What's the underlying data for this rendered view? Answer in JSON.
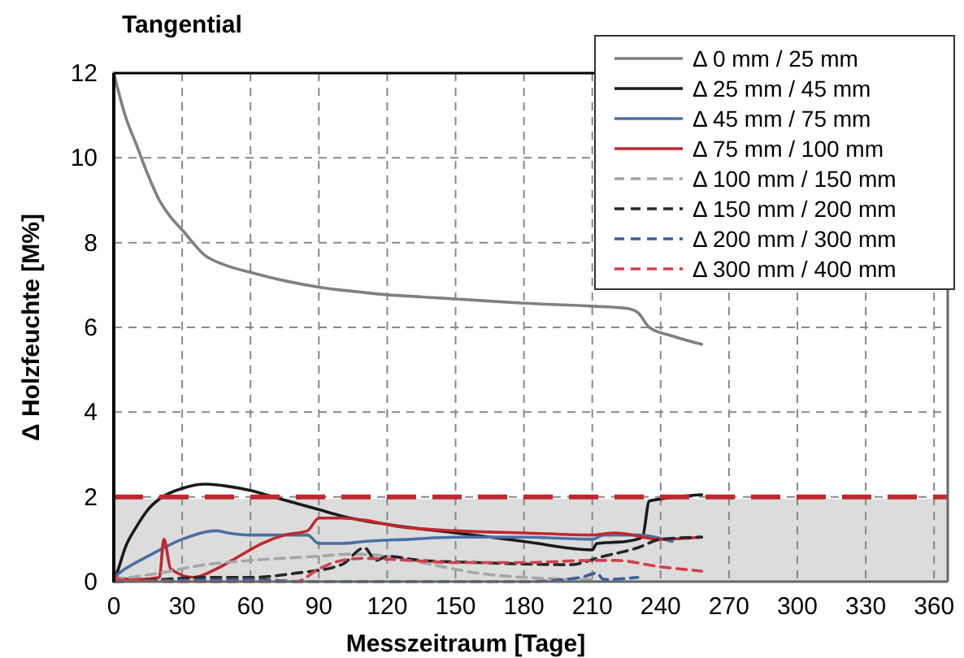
{
  "chart_data": {
    "type": "line",
    "title": "Tangential",
    "xlabel": "Messzeitraum [Tage]",
    "ylabel": "Δ Holzfeuchte [M%]",
    "xlim": [
      0,
      366
    ],
    "ylim": [
      0,
      12
    ],
    "xticks": [
      0,
      30,
      60,
      90,
      120,
      150,
      180,
      210,
      240,
      270,
      300,
      330,
      360
    ],
    "yticks": [
      0,
      2,
      4,
      6,
      8,
      10,
      12
    ],
    "grid": true,
    "legend": "top right",
    "ref_lines": [
      {
        "axis": "y",
        "value": 2,
        "color": "#c0282d",
        "line_style": "dashed"
      }
    ],
    "bands": [
      {
        "axis": "y",
        "from": 0,
        "to": 1.95,
        "color": "#dcdcdc"
      }
    ],
    "series": [
      {
        "name": "Δ 0 mm / 25 mm",
        "color": "#808080",
        "line_style": "solid",
        "x": [
          0,
          5,
          10,
          15,
          20,
          25,
          30,
          40,
          50,
          60,
          75,
          90,
          105,
          120,
          135,
          150,
          180,
          210,
          225,
          230,
          235,
          245,
          258
        ],
        "values": [
          12,
          11,
          10.3,
          9.6,
          9,
          8.6,
          8.3,
          7.7,
          7.45,
          7.3,
          7.1,
          6.95,
          6.85,
          6.77,
          6.72,
          6.67,
          6.57,
          6.5,
          6.45,
          6.35,
          6.0,
          5.8,
          5.6
        ]
      },
      {
        "name": "Δ 25 mm / 45 mm",
        "color": "#1a1a1a",
        "line_style": "solid",
        "x": [
          0,
          2,
          5,
          10,
          15,
          20,
          30,
          40,
          50,
          60,
          70,
          80,
          90,
          100,
          120,
          150,
          180,
          210,
          212,
          225,
          232,
          235,
          240,
          258
        ],
        "values": [
          0,
          0.3,
          0.8,
          1.3,
          1.7,
          1.95,
          2.2,
          2.3,
          2.25,
          2.15,
          2.0,
          1.85,
          1.7,
          1.55,
          1.35,
          1.15,
          0.95,
          0.75,
          0.9,
          0.95,
          1.05,
          1.9,
          1.95,
          2.05
        ]
      },
      {
        "name": "Δ 45 mm / 75 mm",
        "color": "#4a6fa5",
        "line_style": "solid",
        "x": [
          0,
          5,
          15,
          30,
          45,
          50,
          60,
          75,
          85,
          90,
          100,
          110,
          130,
          150,
          180,
          210,
          215,
          230,
          245
        ],
        "values": [
          0.1,
          0.3,
          0.6,
          1.0,
          1.2,
          1.15,
          1.1,
          1.1,
          1.1,
          0.9,
          0.9,
          0.95,
          1.0,
          1.05,
          1.05,
          1.0,
          1.1,
          1.1,
          0.95
        ]
      },
      {
        "name": "Δ 75 mm / 100 mm",
        "color": "#c0282d",
        "line_style": "solid",
        "x": [
          0,
          10,
          20,
          22,
          25,
          35,
          45,
          55,
          65,
          75,
          85,
          90,
          100,
          110,
          125,
          150,
          180,
          210,
          220,
          240,
          258
        ],
        "values": [
          0.1,
          0.05,
          0.1,
          1.0,
          0.3,
          0.1,
          0.3,
          0.6,
          0.9,
          1.1,
          1.2,
          1.5,
          1.5,
          1.45,
          1.3,
          1.2,
          1.15,
          1.1,
          1.15,
          1.0,
          1.05
        ]
      },
      {
        "name": "Δ 100 mm / 150 mm",
        "color": "#a6a6a6",
        "line_style": "dashed",
        "x": [
          0,
          20,
          40,
          60,
          90,
          105,
          120,
          135,
          160,
          180,
          210
        ],
        "values": [
          0.05,
          0.2,
          0.4,
          0.5,
          0.6,
          0.65,
          0.6,
          0.45,
          0.2,
          0.1,
          0.05
        ]
      },
      {
        "name": "Δ 150 mm / 200 mm",
        "color": "#262626",
        "line_style": "dashed",
        "x": [
          0,
          20,
          40,
          60,
          80,
          100,
          110,
          115,
          120,
          135,
          160,
          200,
          215,
          230,
          240,
          258
        ],
        "values": [
          0,
          0.05,
          0.1,
          0.1,
          0.2,
          0.4,
          0.8,
          0.5,
          0.6,
          0.5,
          0.45,
          0.4,
          0.6,
          0.8,
          1.0,
          1.05
        ]
      },
      {
        "name": "Δ 200 mm / 300 mm",
        "color": "#3a5f9a",
        "line_style": "dashed",
        "x": [
          0,
          60,
          85,
          150,
          180,
          205,
          212,
          215,
          230
        ],
        "values": [
          0,
          0.05,
          0,
          0,
          0,
          0.1,
          0.2,
          0.05,
          0.1
        ]
      },
      {
        "name": "Δ 300 mm / 400 mm",
        "color": "#d04050",
        "line_style": "dashed",
        "x": [
          0,
          30,
          80,
          90,
          100,
          110,
          130,
          150,
          180,
          210,
          220,
          240,
          258
        ],
        "values": [
          0.05,
          0,
          0,
          0.3,
          0.5,
          0.55,
          0.5,
          0.45,
          0.45,
          0.5,
          0.5,
          0.35,
          0.25
        ]
      }
    ]
  }
}
